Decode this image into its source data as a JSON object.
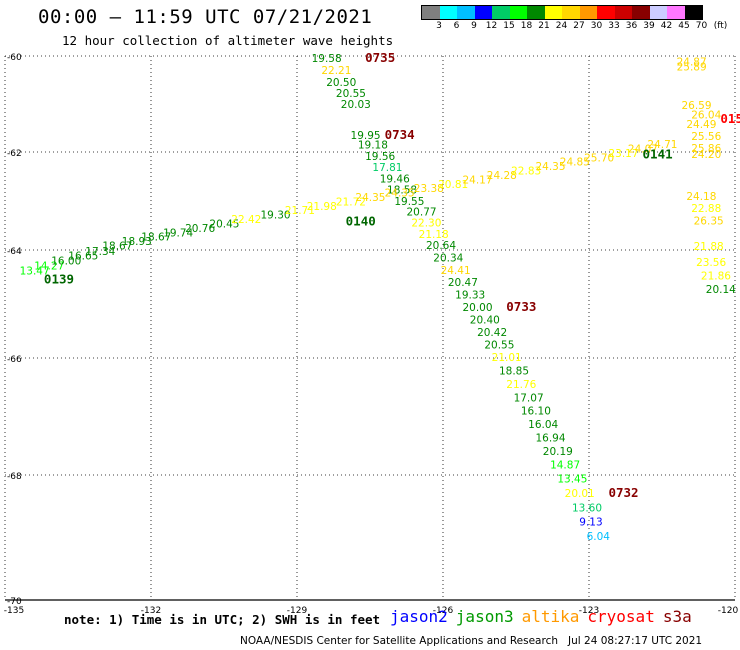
{
  "header": {
    "title": "00:00 – 11:59 UTC 07/21/2021",
    "subtitle": "12 hour collection of altimeter wave heights"
  },
  "color_scale": {
    "unit": "(ft)",
    "colors": [
      "#7f7f7f",
      "#00ffff",
      "#00bfff",
      "#0000ff",
      "#00cc66",
      "#00ff00",
      "#008800",
      "#ffff00",
      "#ffd700",
      "#ff9900",
      "#ff0000",
      "#cc0000",
      "#880000",
      "#ccccff",
      "#ff77ff",
      "#000000"
    ],
    "labels": [
      "3",
      "6",
      "9",
      "12",
      "15",
      "18",
      "21",
      "24",
      "27",
      "30",
      "33",
      "36",
      "39",
      "42",
      "45",
      "70"
    ]
  },
  "axes": {
    "lat_labels": [
      "-60",
      "-62",
      "-64",
      "-66",
      "-68",
      "-70"
    ],
    "lon_labels": [
      "-135",
      "-132",
      "-129",
      "-126",
      "-123",
      "-120"
    ]
  },
  "passes": [
    {
      "time": "0735",
      "color": "#880000"
    },
    {
      "time": "0734",
      "color": "#880000"
    },
    {
      "time": "0733",
      "color": "#880000"
    },
    {
      "time": "0732",
      "color": "#880000"
    },
    {
      "time": "0139",
      "color": "#006600"
    },
    {
      "time": "0140",
      "color": "#006600"
    },
    {
      "time": "0141",
      "color": "#006600"
    },
    {
      "time": "015",
      "color": "#ff0000"
    }
  ],
  "observations": [
    {
      "v": "19.58",
      "c": "#008800",
      "lon": -128.7,
      "lat": -60.12
    },
    {
      "v": "22.21",
      "c": "#ffd700",
      "lon": -128.5,
      "lat": -60.37
    },
    {
      "v": "20.50",
      "c": "#008800",
      "lon": -128.4,
      "lat": -60.62
    },
    {
      "v": "20.55",
      "c": "#008800",
      "lon": -128.2,
      "lat": -60.85
    },
    {
      "v": "20.03",
      "c": "#008800",
      "lon": -128.1,
      "lat": -61.08
    },
    {
      "v": "19.95",
      "c": "#008800",
      "lon": -127.9,
      "lat": -61.73
    },
    {
      "v": "19.18",
      "c": "#008800",
      "lon": -127.75,
      "lat": -61.93
    },
    {
      "v": "19.56",
      "c": "#008800",
      "lon": -127.6,
      "lat": -62.16
    },
    {
      "v": "17.81",
      "c": "#00cc66",
      "lon": -127.45,
      "lat": -62.39
    },
    {
      "v": "19.46",
      "c": "#008800",
      "lon": -127.3,
      "lat": -62.62
    },
    {
      "v": "18.58",
      "c": "#008800",
      "lon": -127.15,
      "lat": -62.85
    },
    {
      "v": "19.55",
      "c": "#008800",
      "lon": -127.0,
      "lat": -63.08
    },
    {
      "v": "20.77",
      "c": "#008800",
      "lon": -126.75,
      "lat": -63.3
    },
    {
      "v": "22.30",
      "c": "#ffff00",
      "lon": -126.65,
      "lat": -63.52
    },
    {
      "v": "21.18",
      "c": "#ffff00",
      "lon": -126.5,
      "lat": -63.75
    },
    {
      "v": "20.64",
      "c": "#008800",
      "lon": -126.35,
      "lat": -63.98
    },
    {
      "v": "20.34",
      "c": "#008800",
      "lon": -126.2,
      "lat": -64.21
    },
    {
      "v": "24.41",
      "c": "#ffd700",
      "lon": -126.05,
      "lat": -64.44
    },
    {
      "v": "20.47",
      "c": "#008800",
      "lon": -125.9,
      "lat": -64.67
    },
    {
      "v": "19.33",
      "c": "#008800",
      "lon": -125.75,
      "lat": -64.9
    },
    {
      "v": "20.00",
      "c": "#008800",
      "lon": -125.6,
      "lat": -65.13
    },
    {
      "v": "20.40",
      "c": "#008800",
      "lon": -125.45,
      "lat": -65.36
    },
    {
      "v": "20.42",
      "c": "#008800",
      "lon": -125.3,
      "lat": -65.59
    },
    {
      "v": "20.55",
      "c": "#008800",
      "lon": -125.15,
      "lat": -65.82
    },
    {
      "v": "21.01",
      "c": "#ffff00",
      "lon": -125.0,
      "lat": -66.05
    },
    {
      "v": "18.85",
      "c": "#008800",
      "lon": -124.85,
      "lat": -66.28
    },
    {
      "v": "21.76",
      "c": "#ffff00",
      "lon": -124.7,
      "lat": -66.51
    },
    {
      "v": "17.07",
      "c": "#008800",
      "lon": -124.55,
      "lat": -66.74
    },
    {
      "v": "16.10",
      "c": "#008800",
      "lon": -124.4,
      "lat": -66.97
    },
    {
      "v": "16.04",
      "c": "#008800",
      "lon": -124.25,
      "lat": -67.2
    },
    {
      "v": "16.94",
      "c": "#008800",
      "lon": -124.1,
      "lat": -67.43
    },
    {
      "v": "20.19",
      "c": "#008800",
      "lon": -123.95,
      "lat": -67.66
    },
    {
      "v": "14.87",
      "c": "#00ff00",
      "lon": -123.8,
      "lat": -67.89
    },
    {
      "v": "13.45",
      "c": "#00ff00",
      "lon": -123.65,
      "lat": -68.12
    },
    {
      "v": "20.01",
      "c": "#ffff00",
      "lon": -123.5,
      "lat": -68.35
    },
    {
      "v": "13.60",
      "c": "#00cc66",
      "lon": -123.35,
      "lat": -68.58
    },
    {
      "v": "9.13",
      "c": "#0000ff",
      "lon": -123.2,
      "lat": -68.81
    },
    {
      "v": "6.04",
      "c": "#00bfff",
      "lon": -123.05,
      "lat": -69.04
    },
    {
      "v": "13.47",
      "c": "#00ff00",
      "lon": -134.7,
      "lat": -64.45
    },
    {
      "v": "14.27",
      "c": "#00ff00",
      "lon": -134.4,
      "lat": -64.36
    },
    {
      "v": "16.00",
      "c": "#008800",
      "lon": -134.05,
      "lat": -64.27
    },
    {
      "v": "16.65",
      "c": "#008800",
      "lon": -133.7,
      "lat": -64.18
    },
    {
      "v": "17.34",
      "c": "#008800",
      "lon": -133.35,
      "lat": -64.09
    },
    {
      "v": "18.67",
      "c": "#008800",
      "lon": -133.0,
      "lat": -63.99
    },
    {
      "v": "18.93",
      "c": "#008800",
      "lon": -132.6,
      "lat": -63.9
    },
    {
      "v": "18.67",
      "c": "#008800",
      "lon": -132.2,
      "lat": -63.81
    },
    {
      "v": "19.74",
      "c": "#008800",
      "lon": -131.75,
      "lat": -63.72
    },
    {
      "v": "20.76",
      "c": "#008800",
      "lon": -131.3,
      "lat": -63.63
    },
    {
      "v": "20.45",
      "c": "#008800",
      "lon": -130.8,
      "lat": -63.54
    },
    {
      "v": "22.42",
      "c": "#ffff00",
      "lon": -130.35,
      "lat": -63.45
    },
    {
      "v": "19.30",
      "c": "#008800",
      "lon": -129.75,
      "lat": -63.36
    },
    {
      "v": "21.71",
      "c": "#ffff00",
      "lon": -129.25,
      "lat": -63.27
    },
    {
      "v": "21.98",
      "c": "#ffff00",
      "lon": -128.8,
      "lat": -63.18
    },
    {
      "v": "21.72",
      "c": "#ffff00",
      "lon": -128.2,
      "lat": -63.09
    },
    {
      "v": "24.35",
      "c": "#ffd700",
      "lon": -127.8,
      "lat": -63.0
    },
    {
      "v": "24.35",
      "c": "#ffd700",
      "lon": -127.2,
      "lat": -62.91
    },
    {
      "v": "23.38",
      "c": "#ffd700",
      "lon": -126.6,
      "lat": -62.82
    },
    {
      "v": "20.81",
      "c": "#ffff00",
      "lon": -126.1,
      "lat": -62.73
    },
    {
      "v": "24.17",
      "c": "#ffd700",
      "lon": -125.6,
      "lat": -62.64
    },
    {
      "v": "24.28",
      "c": "#ffd700",
      "lon": -125.1,
      "lat": -62.55
    },
    {
      "v": "22.83",
      "c": "#ffff00",
      "lon": -124.6,
      "lat": -62.46
    },
    {
      "v": "24.35",
      "c": "#ffd700",
      "lon": -124.1,
      "lat": -62.37
    },
    {
      "v": "24.85",
      "c": "#ffd700",
      "lon": -123.6,
      "lat": -62.28
    },
    {
      "v": "25.70",
      "c": "#ffd700",
      "lon": -123.1,
      "lat": -62.19
    },
    {
      "v": "23.17",
      "c": "#ffff00",
      "lon": -122.6,
      "lat": -62.1
    },
    {
      "v": "24.07",
      "c": "#ffd700",
      "lon": -122.2,
      "lat": -62.01
    },
    {
      "v": "24.71",
      "c": "#ffd700",
      "lon": -121.8,
      "lat": -61.92
    },
    {
      "v": "24.87",
      "c": "#ffd700",
      "lon": -121.2,
      "lat": -60.2
    },
    {
      "v": "25.89",
      "c": "#ffd700",
      "lon": -121.2,
      "lat": -60.3
    },
    {
      "v": "26.59",
      "c": "#ffd700",
      "lon": -121.1,
      "lat": -61.1
    },
    {
      "v": "26.04",
      "c": "#ffd700",
      "lon": -120.9,
      "lat": -61.3
    },
    {
      "v": "24.49",
      "c": "#ffd700",
      "lon": -121.0,
      "lat": -61.5
    },
    {
      "v": "25.56",
      "c": "#ffd700",
      "lon": -120.9,
      "lat": -61.75
    },
    {
      "v": "25.86",
      "c": "#ffd700",
      "lon": -120.9,
      "lat": -62.0
    },
    {
      "v": "24.20",
      "c": "#ffd700",
      "lon": -120.9,
      "lat": -62.12
    },
    {
      "v": "24.18",
      "c": "#ffd700",
      "lon": -121.0,
      "lat": -62.98
    },
    {
      "v": "22.88",
      "c": "#ffff00",
      "lon": -120.9,
      "lat": -63.22
    },
    {
      "v": "26.35",
      "c": "#ffd700",
      "lon": -120.85,
      "lat": -63.48
    },
    {
      "v": "21.88",
      "c": "#ffff00",
      "lon": -120.85,
      "lat": -64.0
    },
    {
      "v": "23.56",
      "c": "#ffff00",
      "lon": -120.8,
      "lat": -64.3
    },
    {
      "v": "21.86",
      "c": "#ffff00",
      "lon": -120.7,
      "lat": -64.55
    },
    {
      "v": "20.14",
      "c": "#008800",
      "lon": -120.6,
      "lat": -64.8
    }
  ],
  "footer": {
    "note": "note: 1) Time is in UTC; 2) SWH is in feet",
    "satellites": [
      {
        "name": "jason2",
        "color": "#0000ff"
      },
      {
        "name": "jason3",
        "color": "#009900"
      },
      {
        "name": "altika",
        "color": "#ff9900"
      },
      {
        "name": "cryosat",
        "color": "#ff0000"
      },
      {
        "name": "s3a",
        "color": "#880000"
      }
    ],
    "credit": "NOAA/NESDIS Center for Satellite Applications and Research   Jul 24 08:27:17 UTC 2021"
  }
}
